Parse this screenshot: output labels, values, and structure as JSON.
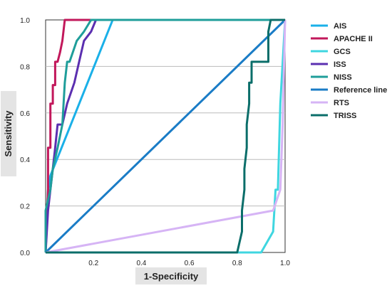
{
  "chart_data": {
    "type": "line",
    "xlabel": "1-Specificity",
    "ylabel": "Sensitivity",
    "xlim": [
      0,
      1
    ],
    "ylim": [
      0,
      1
    ],
    "x_ticks": [
      "0.2",
      "0.4",
      "0.6",
      "0.8",
      "1.0"
    ],
    "x_tick_values": [
      0.2,
      0.4,
      0.6,
      0.8,
      1.0
    ],
    "y_ticks": [
      "0.0",
      "0.2",
      "0.4",
      "0.6",
      "0.8",
      "1.0"
    ],
    "y_tick_values": [
      0.0,
      0.2,
      0.4,
      0.6,
      0.8,
      1.0
    ],
    "grid": "horizontal",
    "legend_placement": "right",
    "series": [
      {
        "name": "AIS",
        "color": "#1ab0e8",
        "x": [
          0,
          0.01,
          0.02,
          0.28,
          1.0
        ],
        "y": [
          0,
          0.27,
          0.33,
          1.0,
          1.0
        ]
      },
      {
        "name": "APACHE II",
        "color": "#c2185b",
        "x": [
          0,
          0.01,
          0.01,
          0.02,
          0.02,
          0.03,
          0.03,
          0.04,
          0.04,
          0.05,
          0.06,
          0.07,
          0.08,
          0.09,
          0.11,
          0.2,
          1.0
        ],
        "y": [
          0,
          0.27,
          0.45,
          0.45,
          0.64,
          0.64,
          0.72,
          0.72,
          0.82,
          0.82,
          0.86,
          0.91,
          1.0,
          1.0,
          1.0,
          1.0,
          1.0
        ]
      },
      {
        "name": "GCS",
        "color": "#3fd6e0",
        "x": [
          0,
          0.8,
          0.9,
          0.95,
          0.96,
          0.97,
          0.98,
          1.0
        ],
        "y": [
          0,
          0,
          0,
          0.09,
          0.27,
          0.27,
          0.64,
          1.0
        ]
      },
      {
        "name": "ISS",
        "color": "#5b2fb0",
        "x": [
          0,
          0.01,
          0.02,
          0.03,
          0.04,
          0.05,
          0.07,
          0.09,
          0.12,
          0.14,
          0.16,
          0.19,
          0.21,
          1.0
        ],
        "y": [
          0,
          0.18,
          0.27,
          0.36,
          0.45,
          0.55,
          0.55,
          0.64,
          0.73,
          0.82,
          0.91,
          0.95,
          1.0,
          1.0
        ]
      },
      {
        "name": "NISS",
        "color": "#1f9e9a",
        "x": [
          0,
          0.0,
          0.02,
          0.03,
          0.05,
          0.07,
          0.08,
          0.09,
          0.1,
          0.13,
          0.16,
          0.19,
          1.0
        ],
        "y": [
          0,
          0.18,
          0.27,
          0.36,
          0.45,
          0.55,
          0.73,
          0.82,
          0.82,
          0.91,
          0.95,
          1.0,
          1.0
        ]
      },
      {
        "name": "Reference line",
        "color": "#1a7cc6",
        "x": [
          0,
          1
        ],
        "y": [
          0,
          1
        ]
      },
      {
        "name": "RTS",
        "color": "#d6b4f5",
        "x": [
          0,
          0.95,
          0.98,
          0.99,
          1.0
        ],
        "y": [
          0,
          0.18,
          0.27,
          0.55,
          1.0
        ]
      },
      {
        "name": "TRISS",
        "color": "#0b6e6a",
        "x": [
          0,
          0.8,
          0.82,
          0.82,
          0.83,
          0.83,
          0.84,
          0.84,
          0.85,
          0.85,
          0.86,
          0.86,
          0.87,
          0.87,
          0.93,
          0.93,
          0.94,
          1.0,
          1.0
        ],
        "y": [
          0,
          0,
          0.09,
          0.18,
          0.27,
          0.36,
          0.45,
          0.55,
          0.64,
          0.73,
          0.73,
          0.82,
          0.82,
          0.82,
          0.82,
          0.95,
          1.0,
          1.0,
          1.0
        ]
      }
    ]
  }
}
